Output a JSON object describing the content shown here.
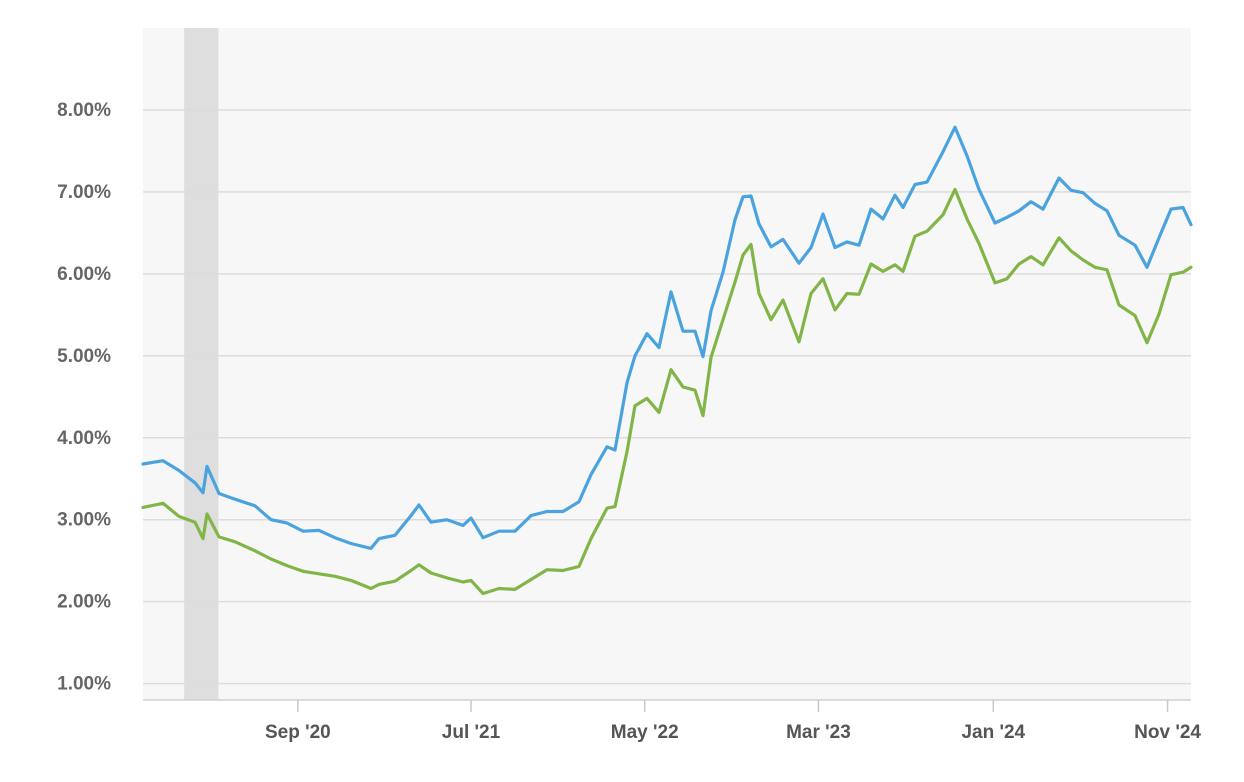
{
  "chart_data": {
    "type": "line",
    "title": "",
    "xlabel": "",
    "ylabel": "",
    "x_range": [
      "2019-12-05",
      "2024-12-12"
    ],
    "ylim": [
      0.8,
      9.0
    ],
    "y_ticks": [
      1,
      2,
      3,
      4,
      5,
      6,
      7,
      8
    ],
    "y_tick_labels": [
      "1.00%",
      "2.00%",
      "3.00%",
      "4.00%",
      "5.00%",
      "6.00%",
      "7.00%",
      "8.00%"
    ],
    "x_ticks": [
      {
        "date": "2020-09-01",
        "label": "Sep '20"
      },
      {
        "date": "2021-07-01",
        "label": "Jul '21"
      },
      {
        "date": "2022-05-01",
        "label": "May '22"
      },
      {
        "date": "2023-03-01",
        "label": "Mar '23"
      },
      {
        "date": "2024-01-01",
        "label": "Jan '24"
      },
      {
        "date": "2024-11-01",
        "label": "Nov '24"
      }
    ],
    "grid": true,
    "legend": "none",
    "shaded_band": {
      "start": "2020-02-15",
      "end": "2020-04-15",
      "color": "#dedede"
    },
    "colors": {
      "series_1": "#4aa3df",
      "series_2": "#82b548",
      "grid": "#dcdcdc",
      "plot_bg": "#f7f7f7"
    },
    "series": [
      {
        "color": "#4aa3df",
        "points": [
          [
            "2019-12-05",
            3.68
          ],
          [
            "2020-01-09",
            3.72
          ],
          [
            "2020-02-06",
            3.6
          ],
          [
            "2020-03-05",
            3.45
          ],
          [
            "2020-03-19",
            3.33
          ],
          [
            "2020-03-26",
            3.65
          ],
          [
            "2020-04-16",
            3.32
          ],
          [
            "2020-05-14",
            3.25
          ],
          [
            "2020-06-18",
            3.17
          ],
          [
            "2020-07-16",
            3.0
          ],
          [
            "2020-08-13",
            2.96
          ],
          [
            "2020-09-10",
            2.86
          ],
          [
            "2020-10-08",
            2.87
          ],
          [
            "2020-11-05",
            2.78
          ],
          [
            "2020-12-03",
            2.71
          ],
          [
            "2021-01-07",
            2.65
          ],
          [
            "2021-01-21",
            2.77
          ],
          [
            "2021-02-18",
            2.81
          ],
          [
            "2021-03-18",
            3.05
          ],
          [
            "2021-04-01",
            3.18
          ],
          [
            "2021-04-22",
            2.97
          ],
          [
            "2021-05-20",
            3.0
          ],
          [
            "2021-06-17",
            2.93
          ],
          [
            "2021-07-01",
            3.02
          ],
          [
            "2021-07-22",
            2.78
          ],
          [
            "2021-08-19",
            2.86
          ],
          [
            "2021-09-16",
            2.86
          ],
          [
            "2021-10-14",
            3.05
          ],
          [
            "2021-11-11",
            3.1
          ],
          [
            "2021-12-09",
            3.1
          ],
          [
            "2022-01-06",
            3.22
          ],
          [
            "2022-01-27",
            3.55
          ],
          [
            "2022-02-24",
            3.89
          ],
          [
            "2022-03-10",
            3.85
          ],
          [
            "2022-03-31",
            4.67
          ],
          [
            "2022-04-14",
            5.0
          ],
          [
            "2022-05-05",
            5.27
          ],
          [
            "2022-05-26",
            5.1
          ],
          [
            "2022-06-16",
            5.78
          ],
          [
            "2022-07-07",
            5.3
          ],
          [
            "2022-07-28",
            5.3
          ],
          [
            "2022-08-11",
            4.99
          ],
          [
            "2022-08-25",
            5.55
          ],
          [
            "2022-09-15",
            6.02
          ],
          [
            "2022-10-06",
            6.66
          ],
          [
            "2022-10-20",
            6.94
          ],
          [
            "2022-11-03",
            6.95
          ],
          [
            "2022-11-17",
            6.61
          ],
          [
            "2022-12-08",
            6.33
          ],
          [
            "2022-12-29",
            6.42
          ],
          [
            "2023-01-26",
            6.13
          ],
          [
            "2023-02-16",
            6.32
          ],
          [
            "2023-03-09",
            6.73
          ],
          [
            "2023-03-30",
            6.32
          ],
          [
            "2023-04-20",
            6.39
          ],
          [
            "2023-05-11",
            6.35
          ],
          [
            "2023-06-01",
            6.79
          ],
          [
            "2023-06-22",
            6.67
          ],
          [
            "2023-07-13",
            6.96
          ],
          [
            "2023-07-27",
            6.81
          ],
          [
            "2023-08-17",
            7.09
          ],
          [
            "2023-09-07",
            7.12
          ],
          [
            "2023-10-05",
            7.49
          ],
          [
            "2023-10-26",
            7.79
          ],
          [
            "2023-11-16",
            7.44
          ],
          [
            "2023-12-07",
            7.03
          ],
          [
            "2024-01-04",
            6.62
          ],
          [
            "2024-01-25",
            6.69
          ],
          [
            "2024-02-15",
            6.77
          ],
          [
            "2024-03-07",
            6.88
          ],
          [
            "2024-03-28",
            6.79
          ],
          [
            "2024-04-25",
            7.17
          ],
          [
            "2024-05-16",
            7.02
          ],
          [
            "2024-06-06",
            6.99
          ],
          [
            "2024-06-27",
            6.86
          ],
          [
            "2024-07-18",
            6.77
          ],
          [
            "2024-08-08",
            6.47
          ],
          [
            "2024-09-05",
            6.35
          ],
          [
            "2024-09-26",
            6.08
          ],
          [
            "2024-10-17",
            6.44
          ],
          [
            "2024-11-07",
            6.79
          ],
          [
            "2024-11-28",
            6.81
          ],
          [
            "2024-12-12",
            6.6
          ]
        ]
      },
      {
        "color": "#82b548",
        "points": [
          [
            "2019-12-05",
            3.15
          ],
          [
            "2020-01-09",
            3.2
          ],
          [
            "2020-02-06",
            3.04
          ],
          [
            "2020-03-05",
            2.97
          ],
          [
            "2020-03-19",
            2.77
          ],
          [
            "2020-03-26",
            3.07
          ],
          [
            "2020-04-16",
            2.79
          ],
          [
            "2020-05-14",
            2.73
          ],
          [
            "2020-06-18",
            2.62
          ],
          [
            "2020-07-16",
            2.52
          ],
          [
            "2020-08-13",
            2.44
          ],
          [
            "2020-09-10",
            2.37
          ],
          [
            "2020-10-08",
            2.34
          ],
          [
            "2020-11-05",
            2.31
          ],
          [
            "2020-12-03",
            2.26
          ],
          [
            "2021-01-07",
            2.16
          ],
          [
            "2021-01-21",
            2.21
          ],
          [
            "2021-02-18",
            2.25
          ],
          [
            "2021-03-18",
            2.38
          ],
          [
            "2021-04-01",
            2.45
          ],
          [
            "2021-04-22",
            2.35
          ],
          [
            "2021-05-20",
            2.29
          ],
          [
            "2021-06-17",
            2.24
          ],
          [
            "2021-07-01",
            2.26
          ],
          [
            "2021-07-22",
            2.1
          ],
          [
            "2021-08-19",
            2.16
          ],
          [
            "2021-09-16",
            2.15
          ],
          [
            "2021-10-14",
            2.27
          ],
          [
            "2021-11-11",
            2.39
          ],
          [
            "2021-12-09",
            2.38
          ],
          [
            "2022-01-06",
            2.43
          ],
          [
            "2022-01-27",
            2.77
          ],
          [
            "2022-02-24",
            3.14
          ],
          [
            "2022-03-10",
            3.16
          ],
          [
            "2022-03-31",
            3.83
          ],
          [
            "2022-04-14",
            4.39
          ],
          [
            "2022-05-05",
            4.48
          ],
          [
            "2022-05-26",
            4.31
          ],
          [
            "2022-06-16",
            4.83
          ],
          [
            "2022-07-07",
            4.62
          ],
          [
            "2022-07-28",
            4.58
          ],
          [
            "2022-08-11",
            4.27
          ],
          [
            "2022-08-25",
            4.98
          ],
          [
            "2022-09-15",
            5.44
          ],
          [
            "2022-10-06",
            5.9
          ],
          [
            "2022-10-20",
            6.23
          ],
          [
            "2022-11-03",
            6.36
          ],
          [
            "2022-11-17",
            5.76
          ],
          [
            "2022-12-08",
            5.44
          ],
          [
            "2022-12-29",
            5.68
          ],
          [
            "2023-01-26",
            5.17
          ],
          [
            "2023-02-16",
            5.76
          ],
          [
            "2023-03-09",
            5.94
          ],
          [
            "2023-03-30",
            5.56
          ],
          [
            "2023-04-20",
            5.76
          ],
          [
            "2023-05-11",
            5.75
          ],
          [
            "2023-06-01",
            6.12
          ],
          [
            "2023-06-22",
            6.03
          ],
          [
            "2023-07-13",
            6.11
          ],
          [
            "2023-07-27",
            6.03
          ],
          [
            "2023-08-17",
            6.46
          ],
          [
            "2023-09-07",
            6.52
          ],
          [
            "2023-10-05",
            6.72
          ],
          [
            "2023-10-26",
            7.03
          ],
          [
            "2023-11-16",
            6.67
          ],
          [
            "2023-12-07",
            6.37
          ],
          [
            "2024-01-04",
            5.89
          ],
          [
            "2024-01-25",
            5.94
          ],
          [
            "2024-02-15",
            6.12
          ],
          [
            "2024-03-07",
            6.21
          ],
          [
            "2024-03-28",
            6.11
          ],
          [
            "2024-04-25",
            6.44
          ],
          [
            "2024-05-16",
            6.28
          ],
          [
            "2024-06-06",
            6.17
          ],
          [
            "2024-06-27",
            6.08
          ],
          [
            "2024-07-18",
            6.05
          ],
          [
            "2024-08-08",
            5.62
          ],
          [
            "2024-09-05",
            5.49
          ],
          [
            "2024-09-26",
            5.16
          ],
          [
            "2024-10-17",
            5.51
          ],
          [
            "2024-11-07",
            5.99
          ],
          [
            "2024-11-28",
            6.02
          ],
          [
            "2024-12-12",
            6.08
          ]
        ]
      }
    ]
  }
}
